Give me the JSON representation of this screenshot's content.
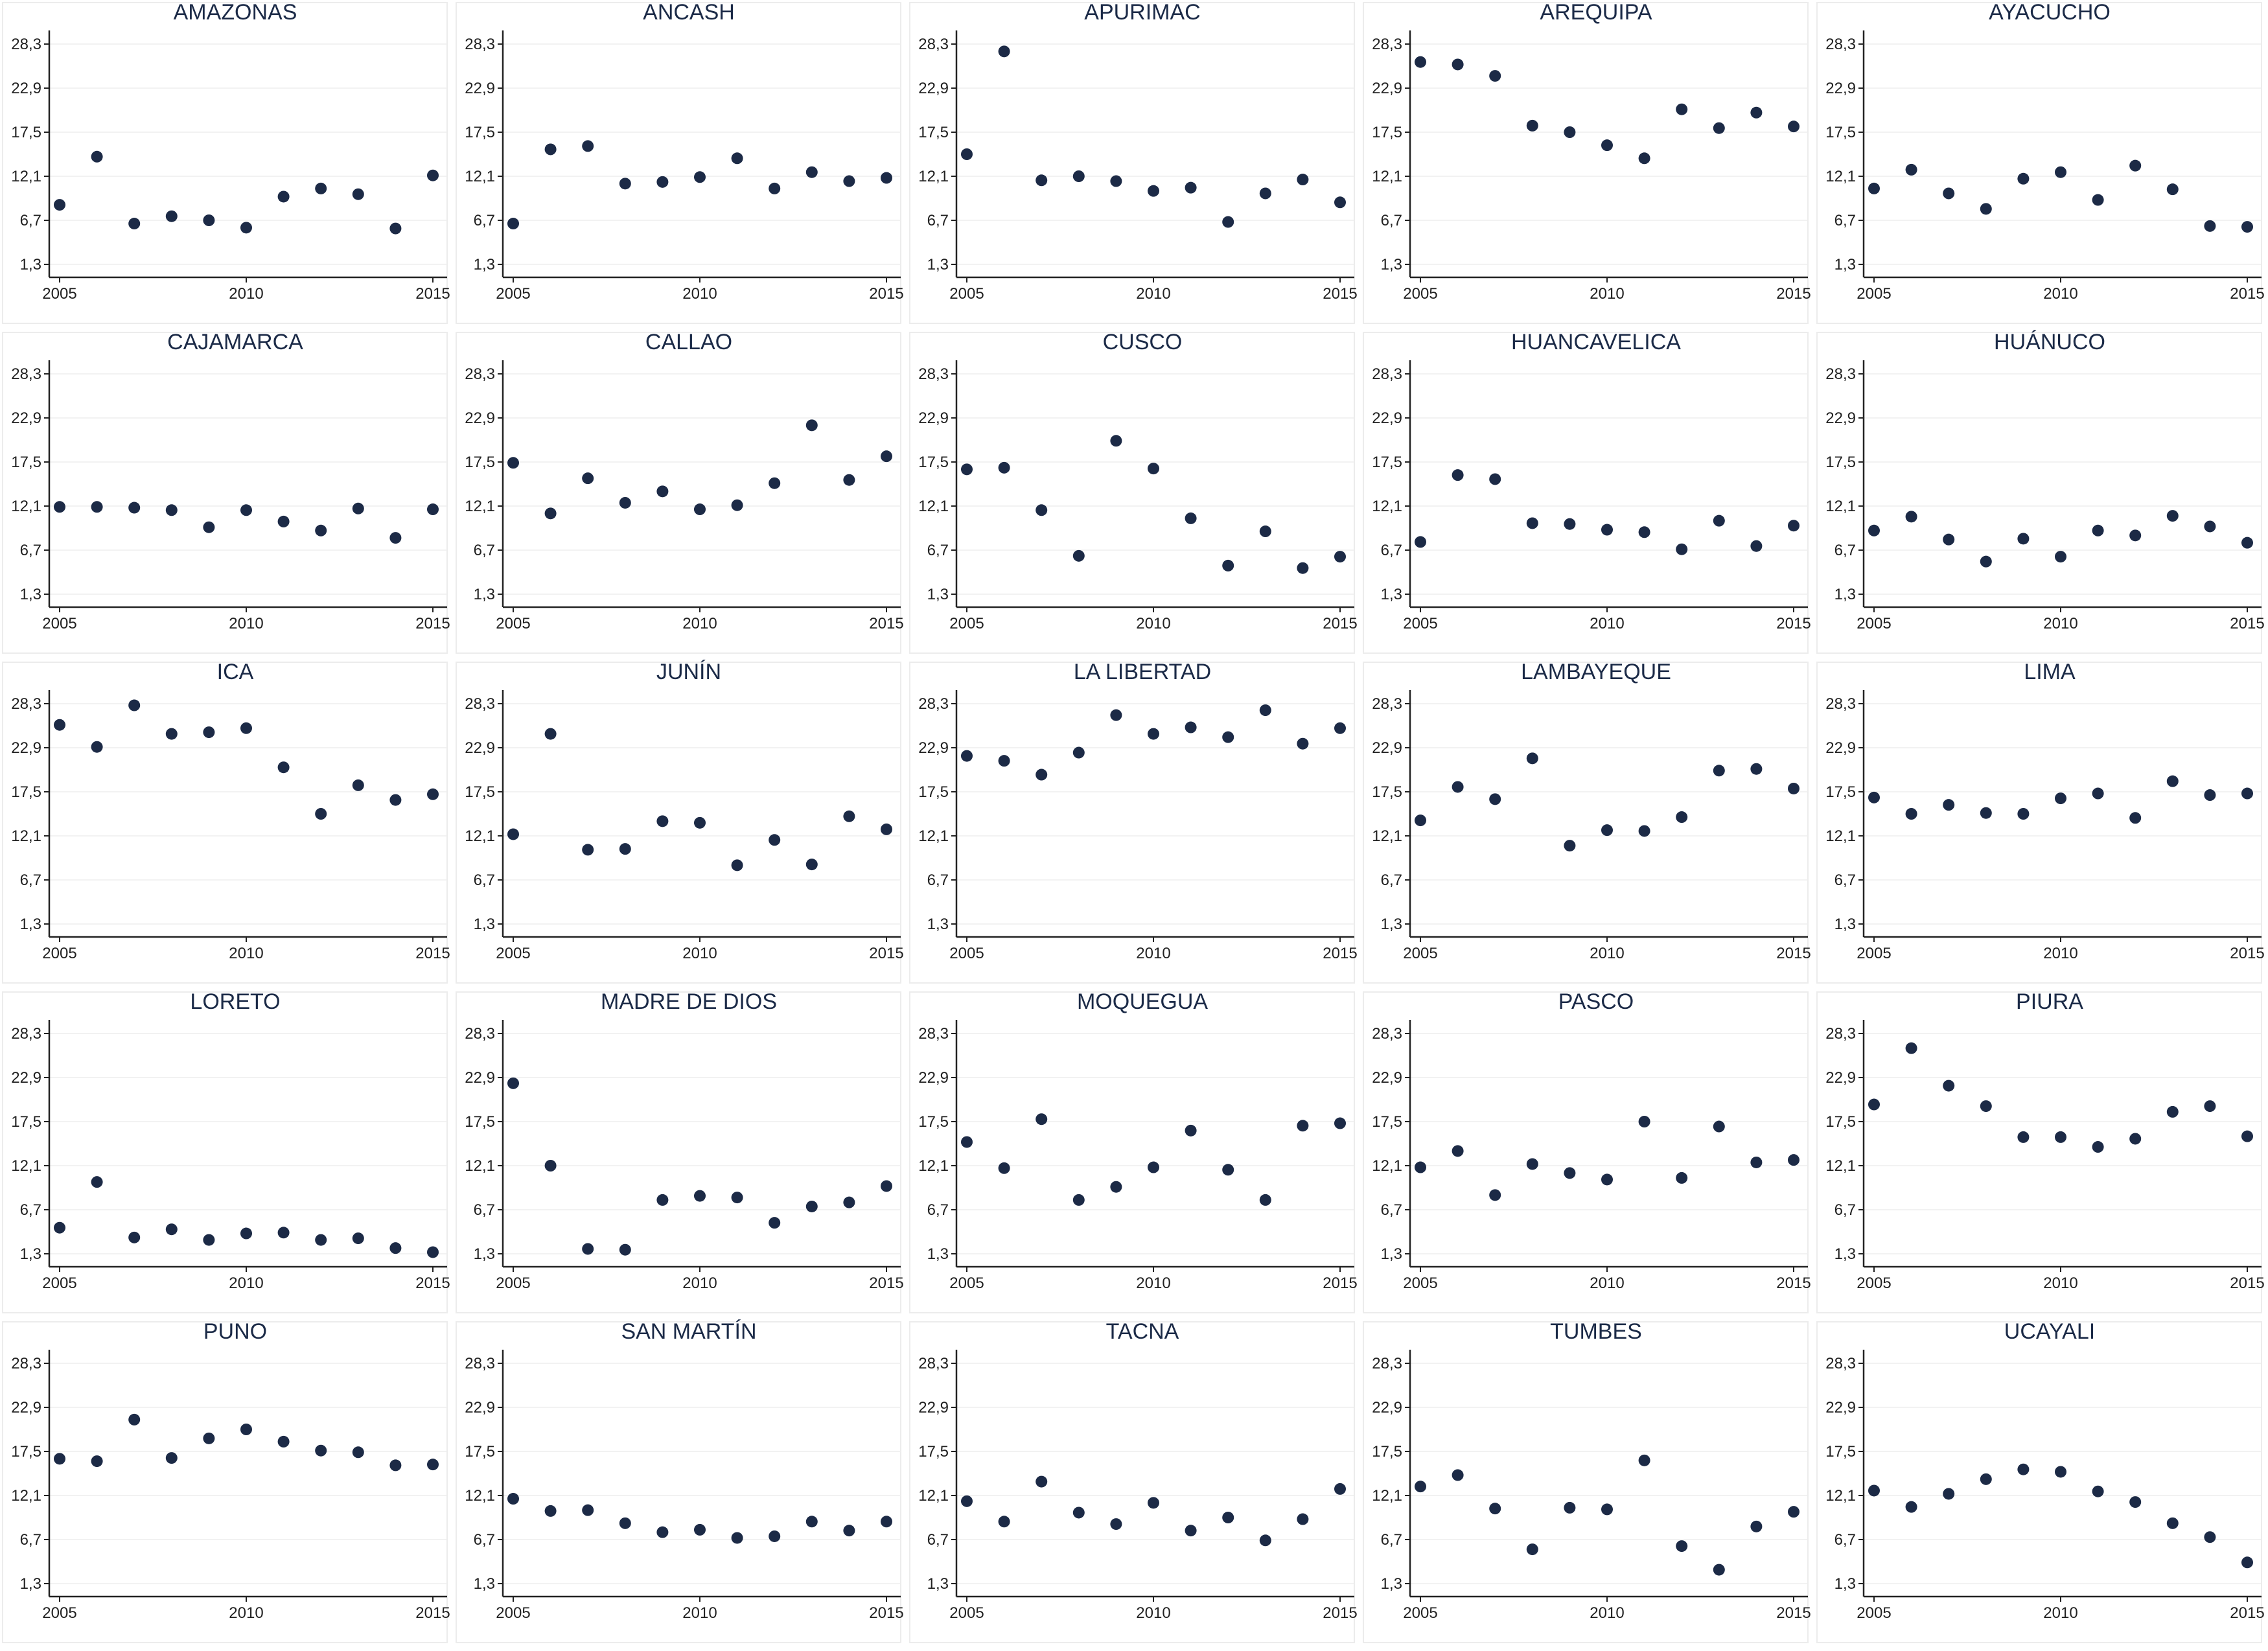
{
  "chart_data": {
    "type": "scatter",
    "shared_axes": {
      "xlim": [
        2005,
        2015
      ],
      "x_ticks": [
        2005,
        2010,
        2015
      ],
      "x_tick_labels": [
        "2005",
        "2010",
        "2015"
      ],
      "ylim": [
        1.3,
        28.3
      ],
      "y_ticks": [
        1.3,
        6.7,
        12.1,
        17.5,
        22.9,
        28.3
      ],
      "y_tick_labels": [
        "1,3",
        "6,7",
        "12,1",
        "17,5",
        "22,9",
        "28,3"
      ],
      "grid": "horizontal"
    },
    "x": [
      2005,
      2006,
      2007,
      2008,
      2009,
      2010,
      2011,
      2012,
      2013,
      2014,
      2015
    ],
    "marker_color": "#1c2a46",
    "panels": [
      {
        "title": "AMAZONAS",
        "values": [
          8.6,
          14.5,
          6.3,
          7.2,
          6.7,
          5.8,
          9.6,
          10.6,
          9.9,
          5.7,
          12.2
        ]
      },
      {
        "title": "ANCASH",
        "values": [
          6.3,
          15.4,
          15.8,
          11.2,
          11.4,
          12.0,
          14.3,
          10.6,
          12.6,
          11.5,
          11.9
        ]
      },
      {
        "title": "APURIMAC",
        "values": [
          14.8,
          27.4,
          11.6,
          12.1,
          11.5,
          10.3,
          10.7,
          6.5,
          10.0,
          11.7,
          8.9
        ]
      },
      {
        "title": "AREQUIPA",
        "values": [
          26.1,
          25.8,
          24.4,
          18.3,
          17.5,
          15.9,
          14.3,
          20.3,
          18.0,
          19.9,
          18.2
        ]
      },
      {
        "title": "AYACUCHO",
        "values": [
          10.6,
          12.9,
          10.0,
          8.1,
          11.8,
          12.6,
          9.2,
          13.4,
          10.5,
          6.0,
          5.9
        ]
      },
      {
        "title": "CAJAMARCA",
        "values": [
          12.0,
          12.0,
          11.9,
          11.6,
          9.5,
          11.6,
          10.2,
          9.1,
          11.8,
          8.2,
          11.7
        ]
      },
      {
        "title": "CALLAO",
        "values": [
          17.4,
          11.2,
          15.5,
          12.5,
          13.9,
          11.7,
          12.2,
          14.9,
          22.0,
          15.3,
          18.2
        ]
      },
      {
        "title": "CUSCO",
        "values": [
          16.6,
          16.8,
          11.6,
          6.0,
          20.1,
          16.7,
          10.6,
          4.8,
          9.0,
          4.5,
          5.9
        ]
      },
      {
        "title": "HUANCAVELICA",
        "values": [
          7.7,
          15.9,
          15.4,
          10.0,
          9.9,
          9.2,
          8.9,
          6.8,
          10.3,
          7.2,
          9.7
        ]
      },
      {
        "title": "HUÁNUCO",
        "values": [
          9.1,
          10.8,
          8.0,
          5.3,
          8.1,
          5.9,
          9.1,
          8.5,
          10.9,
          9.6,
          7.6
        ]
      },
      {
        "title": "ICA",
        "values": [
          25.7,
          23.0,
          28.1,
          24.6,
          24.8,
          25.3,
          20.5,
          14.8,
          18.3,
          16.5,
          17.2
        ]
      },
      {
        "title": "JUNÍN",
        "values": [
          12.3,
          24.6,
          10.4,
          10.5,
          13.9,
          13.7,
          8.5,
          11.6,
          8.6,
          14.5,
          12.9
        ]
      },
      {
        "title": "LA LIBERTAD",
        "values": [
          21.9,
          21.3,
          19.6,
          22.3,
          26.9,
          24.6,
          25.4,
          24.2,
          27.5,
          23.4,
          25.3
        ]
      },
      {
        "title": "LAMBAYEQUE",
        "values": [
          14.0,
          18.1,
          16.6,
          21.6,
          10.9,
          12.8,
          12.7,
          14.4,
          20.1,
          20.3,
          17.9
        ]
      },
      {
        "title": "LIMA",
        "values": [
          16.8,
          14.8,
          15.9,
          14.9,
          14.8,
          16.7,
          17.3,
          14.3,
          18.8,
          17.1,
          17.3
        ]
      },
      {
        "title": "LORETO",
        "values": [
          4.5,
          10.1,
          3.3,
          4.3,
          3.0,
          3.8,
          3.9,
          3.0,
          3.2,
          2.0,
          1.5
        ]
      },
      {
        "title": "MADRE DE DIOS",
        "values": [
          22.2,
          12.1,
          1.9,
          1.8,
          7.9,
          8.4,
          8.2,
          5.1,
          7.1,
          7.6,
          9.6
        ]
      },
      {
        "title": "MOQUEGUA",
        "values": [
          15.0,
          11.8,
          17.8,
          7.9,
          9.5,
          11.9,
          16.4,
          11.6,
          7.9,
          17.0,
          17.3
        ]
      },
      {
        "title": "PASCO",
        "values": [
          11.9,
          13.9,
          8.5,
          12.3,
          11.2,
          10.4,
          17.5,
          10.6,
          16.9,
          12.5,
          12.8
        ]
      },
      {
        "title": "PIURA",
        "values": [
          19.6,
          26.5,
          21.9,
          19.4,
          15.6,
          15.6,
          14.4,
          15.4,
          18.7,
          19.4,
          15.7
        ]
      },
      {
        "title": "PUNO",
        "values": [
          16.6,
          16.3,
          21.4,
          16.7,
          19.1,
          20.2,
          18.7,
          17.6,
          17.4,
          15.8,
          15.9
        ]
      },
      {
        "title": "SAN MARTÍN",
        "values": [
          11.7,
          10.2,
          10.3,
          8.7,
          7.6,
          7.9,
          6.9,
          7.1,
          8.9,
          7.8,
          8.9
        ]
      },
      {
        "title": "TACNA",
        "values": [
          11.4,
          8.9,
          13.8,
          10.0,
          8.6,
          11.2,
          7.8,
          9.4,
          6.6,
          9.2,
          12.9
        ]
      },
      {
        "title": "TUMBES",
        "values": [
          13.2,
          14.6,
          10.5,
          5.5,
          10.6,
          10.4,
          16.4,
          5.9,
          3.0,
          8.3,
          10.1
        ]
      },
      {
        "title": "UCAYALI",
        "values": [
          12.7,
          10.7,
          12.3,
          14.1,
          15.3,
          15.0,
          12.6,
          11.3,
          8.7,
          7.0,
          3.9
        ]
      }
    ]
  }
}
